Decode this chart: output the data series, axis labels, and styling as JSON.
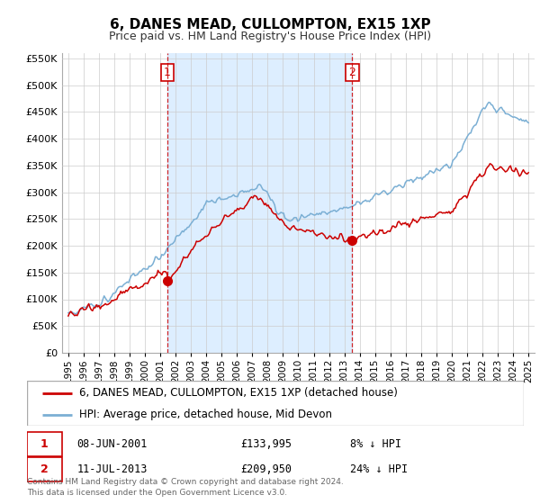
{
  "title": "6, DANES MEAD, CULLOMPTON, EX15 1XP",
  "subtitle": "Price paid vs. HM Land Registry's House Price Index (HPI)",
  "legend_line1": "6, DANES MEAD, CULLOMPTON, EX15 1XP (detached house)",
  "legend_line2": "HPI: Average price, detached house, Mid Devon",
  "note1_num": "1",
  "note1_date": "08-JUN-2001",
  "note1_price": "£133,995",
  "note1_hpi": "8% ↓ HPI",
  "note2_num": "2",
  "note2_date": "11-JUL-2013",
  "note2_price": "£209,950",
  "note2_hpi": "24% ↓ HPI",
  "footer": "Contains HM Land Registry data © Crown copyright and database right 2024.\nThis data is licensed under the Open Government Licence v3.0.",
  "sale1_year": 2001.44,
  "sale1_price": 133995,
  "sale2_year": 2013.52,
  "sale2_price": 209950,
  "red_color": "#cc0000",
  "blue_color": "#7bafd4",
  "shade_color": "#ddeeff",
  "vline_color": "#cc0000",
  "grid_color": "#cccccc",
  "bg_color": "#ffffff",
  "ylim_min": 0,
  "ylim_max": 560000,
  "xlim_min": 1994.6,
  "xlim_max": 2025.4,
  "yticks": [
    0,
    50000,
    100000,
    150000,
    200000,
    250000,
    300000,
    350000,
    400000,
    450000,
    500000,
    550000
  ],
  "xticks": [
    1995,
    1996,
    1997,
    1998,
    1999,
    2000,
    2001,
    2002,
    2003,
    2004,
    2005,
    2006,
    2007,
    2008,
    2009,
    2010,
    2011,
    2012,
    2013,
    2014,
    2015,
    2016,
    2017,
    2018,
    2019,
    2020,
    2021,
    2022,
    2023,
    2024,
    2025
  ]
}
